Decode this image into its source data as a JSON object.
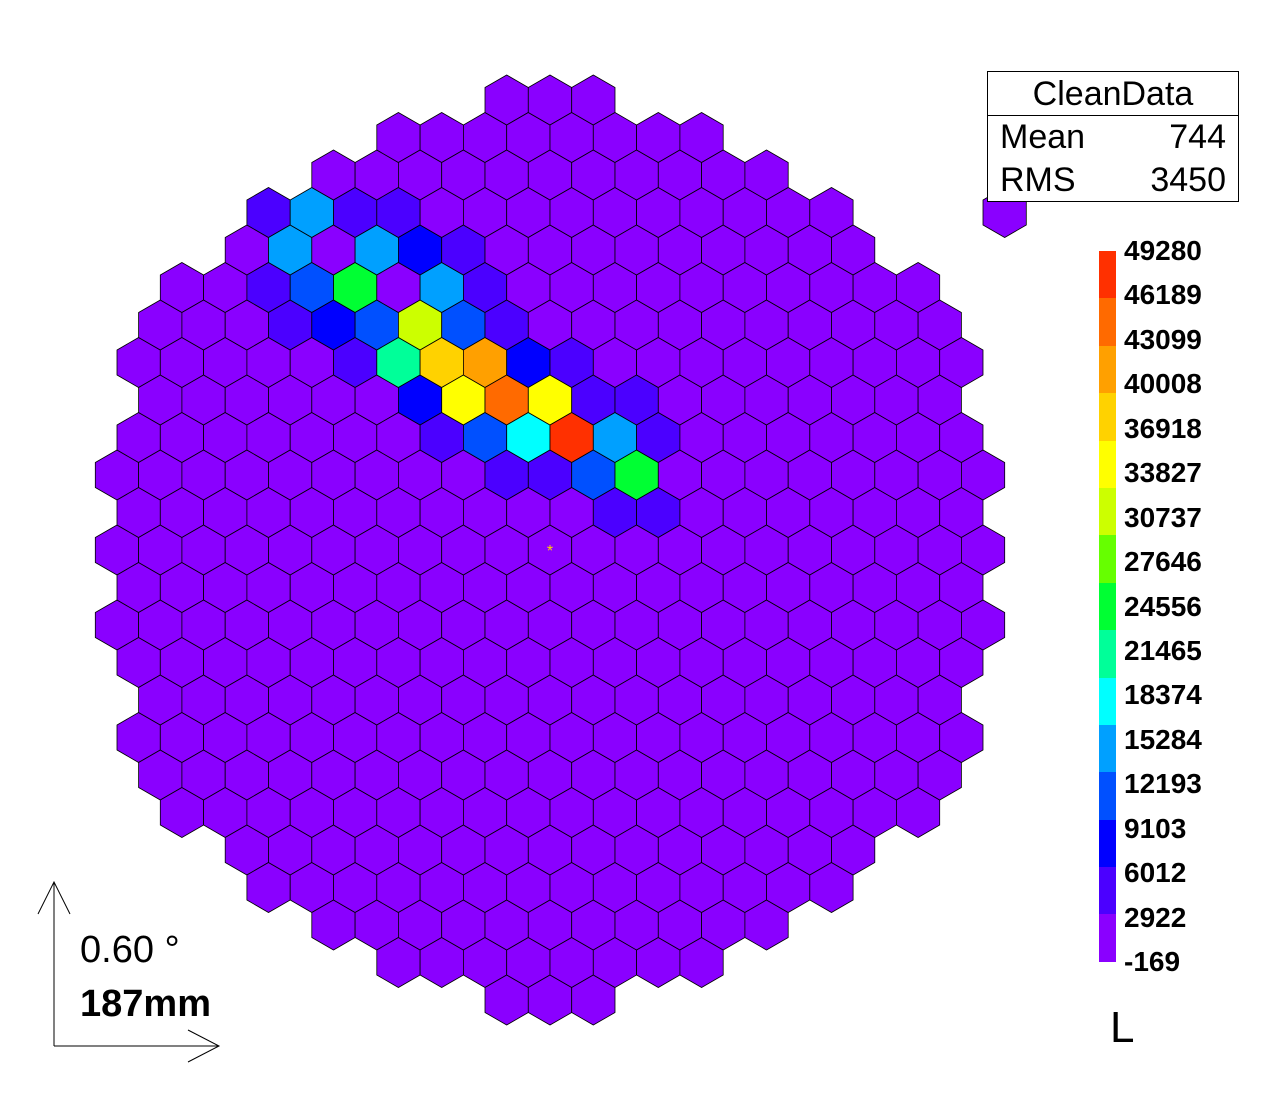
{
  "chart_data": {
    "type": "heatmap",
    "title": "",
    "geometry": "hexagonal-camera",
    "ring_count": 18,
    "extra_outer_pixels": 1,
    "hot_pixels": [
      {
        "q": -1,
        "r": -13,
        "value": 1500
      },
      {
        "q": -2,
        "r": -12,
        "value": 1500
      },
      {
        "q": -3,
        "r": -11,
        "value": 4000
      },
      {
        "q": -4,
        "r": -10,
        "value": 1500
      },
      {
        "q": -3,
        "r": -12,
        "value": 3000
      },
      {
        "q": -2,
        "r": -11,
        "value": 3000
      },
      {
        "q": -2,
        "r": -10,
        "value": 5000
      },
      {
        "q": -3,
        "r": -10,
        "value": 6012
      },
      {
        "q": -1,
        "r": -10,
        "value": 3500
      },
      {
        "q": -3,
        "r": -9,
        "value": 2500
      },
      {
        "q": -2,
        "r": -9,
        "value": 4000
      },
      {
        "q": -1,
        "r": -11,
        "value": 2000
      },
      {
        "q": -1,
        "r": -9,
        "value": 15284
      },
      {
        "q": 0,
        "r": -10,
        "value": 3000
      },
      {
        "q": -4,
        "r": -8,
        "value": 4000
      },
      {
        "q": -3,
        "r": -8,
        "value": 3000
      },
      {
        "q": -2,
        "r": -8,
        "value": 16000
      },
      {
        "q": -1,
        "r": -8,
        "value": 3000
      },
      {
        "q": 0,
        "r": -9,
        "value": 5000
      },
      {
        "q": 1,
        "r": -9,
        "value": 4000
      },
      {
        "q": -3,
        "r": -7,
        "value": 5000
      },
      {
        "q": -2,
        "r": -7,
        "value": 12000
      },
      {
        "q": -1,
        "r": -7,
        "value": 25000
      },
      {
        "q": 0,
        "r": -8,
        "value": 14000
      },
      {
        "q": 1,
        "r": -8,
        "value": 7000
      },
      {
        "q": 2,
        "r": -8,
        "value": 3500
      },
      {
        "q": -3,
        "r": -6,
        "value": 3500
      },
      {
        "q": -2,
        "r": -6,
        "value": 8000
      },
      {
        "q": -1,
        "r": -6,
        "value": 12000
      },
      {
        "q": 0,
        "r": -6,
        "value": 30737
      },
      {
        "q": 1,
        "r": -7,
        "value": 16000
      },
      {
        "q": 2,
        "r": -7,
        "value": 5000
      },
      {
        "q": 3,
        "r": -7,
        "value": 2500
      },
      {
        "q": -2,
        "r": -5,
        "value": 4000
      },
      {
        "q": -1,
        "r": -5,
        "value": 20000
      },
      {
        "q": 0,
        "r": -5,
        "value": 36918
      },
      {
        "q": 1,
        "r": -6,
        "value": 12193
      },
      {
        "q": 2,
        "r": -6,
        "value": 5000
      },
      {
        "q": -1,
        "r": -4,
        "value": 9103
      },
      {
        "q": 0,
        "r": -4,
        "value": 34500
      },
      {
        "q": 1,
        "r": -5,
        "value": 40008
      },
      {
        "q": 2,
        "r": -5,
        "value": 9103
      },
      {
        "q": 3,
        "r": -5,
        "value": 3500
      },
      {
        "q": -1,
        "r": -3,
        "value": 5000
      },
      {
        "q": 0,
        "r": -3,
        "value": 13000
      },
      {
        "q": 1,
        "r": -4,
        "value": 43099
      },
      {
        "q": 2,
        "r": -4,
        "value": 33000
      },
      {
        "q": 3,
        "r": -4,
        "value": 6012
      },
      {
        "q": 0,
        "r": -2,
        "value": 3500
      },
      {
        "q": 1,
        "r": -3,
        "value": 17000
      },
      {
        "q": 2,
        "r": -3,
        "value": 49280
      },
      {
        "q": 3,
        "r": -3,
        "value": 16000
      },
      {
        "q": 4,
        "r": -4,
        "value": 5000
      },
      {
        "q": 1,
        "r": -2,
        "value": 4000
      },
      {
        "q": 2,
        "r": -2,
        "value": 12000
      },
      {
        "q": 3,
        "r": -2,
        "value": 25000
      },
      {
        "q": 4,
        "r": -3,
        "value": 5000
      },
      {
        "q": 2,
        "r": -1,
        "value": 3500
      },
      {
        "q": 3,
        "r": -1,
        "value": 4500
      }
    ],
    "baseline_value": 600,
    "zmin": -169,
    "zmax": 49280,
    "palette_labels": [
      "49280",
      "46189",
      "43099",
      "40008",
      "36918",
      "33827",
      "30737",
      "27646",
      "24556",
      "21465",
      "18374",
      "15284",
      "12193",
      "9103",
      "6012",
      "2922",
      "-169"
    ],
    "colorscale": [
      "#8a00ff",
      "#4b00ff",
      "#0000ff",
      "#0050ff",
      "#00a0ff",
      "#00ffff",
      "#00ff99",
      "#00ff33",
      "#66ff00",
      "#ccff00",
      "#ffff00",
      "#ffd200",
      "#ffa000",
      "#ff6a00",
      "#ff3000"
    ],
    "stats": {
      "title": "CleanData",
      "rows": [
        {
          "label": "Mean",
          "value": "744"
        },
        {
          "label": "RMS",
          "value": "3450"
        }
      ]
    },
    "unit": "L",
    "scale": {
      "angle": "0.60",
      "angle_symbol": "°",
      "length": "187mm"
    },
    "marker_color": "#ffd400"
  }
}
